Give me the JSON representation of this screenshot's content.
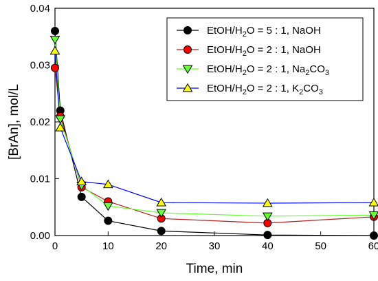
{
  "chart_data": {
    "type": "line",
    "xlabel": "Time, min",
    "ylabel": "[BrAn], mol/L",
    "xlim": [
      0,
      60
    ],
    "ylim": [
      0,
      0.04
    ],
    "xticks": [
      0,
      10,
      20,
      30,
      40,
      50,
      60
    ],
    "yticks": [
      0.0,
      0.01,
      0.02,
      0.03,
      0.04
    ],
    "xtick_labels": [
      "0",
      "10",
      "20",
      "30",
      "40",
      "50",
      "60"
    ],
    "ytick_labels": [
      "0.00",
      "0.01",
      "0.02",
      "0.03",
      "0.04"
    ],
    "grid": false,
    "legend_position": "top-right",
    "series": [
      {
        "name": "EtOH/H₂O = 5 : 1, NaOH",
        "label_parts": [
          "EtOH/H",
          "2",
          "O = 5 : 1, NaOH",
          "",
          ""
        ],
        "marker": "circle",
        "color": "#000000",
        "line_color": "#000000",
        "x": [
          0,
          1,
          5,
          10,
          20,
          40,
          60
        ],
        "y": [
          0.036,
          0.022,
          0.0068,
          0.0026,
          0.0008,
          0.0001,
          0.0
        ]
      },
      {
        "name": "EtOH/H₂O = 2 : 1, NaOH",
        "label_parts": [
          "EtOH/H",
          "2",
          "O = 2 : 1, NaOH",
          "",
          ""
        ],
        "marker": "circle",
        "color": "#ff0000",
        "line_color": "#b22222",
        "x": [
          0,
          1,
          5,
          10,
          20,
          40,
          60
        ],
        "y": [
          0.0295,
          0.021,
          0.0085,
          0.006,
          0.003,
          0.0022,
          0.0033
        ]
      },
      {
        "name": "EtOH/H₂O = 2 : 1, Na₂CO₃",
        "label_parts": [
          "EtOH/H",
          "2",
          "O = 2 : 1, Na",
          "2",
          "CO",
          "3"
        ],
        "marker": "triangle-down",
        "color": "#66ff33",
        "line_color": "#66ff33",
        "x": [
          0,
          1,
          5,
          10,
          20,
          40,
          60
        ],
        "y": [
          0.0345,
          0.0205,
          0.0088,
          0.0052,
          0.004,
          0.0034,
          0.0036
        ]
      },
      {
        "name": "EtOH/H₂O = 2 : 1, K₂CO₃",
        "label_parts": [
          "EtOH/H",
          "2",
          "O = 2 : 1, K",
          "2",
          "CO",
          "3"
        ],
        "marker": "triangle-up",
        "color": "#ffff00",
        "line_color": "#0000ff",
        "x": [
          0,
          1,
          5,
          10,
          20,
          40,
          60
        ],
        "y": [
          0.0325,
          0.019,
          0.0095,
          0.009,
          0.0058,
          0.0057,
          0.0058
        ]
      }
    ]
  }
}
